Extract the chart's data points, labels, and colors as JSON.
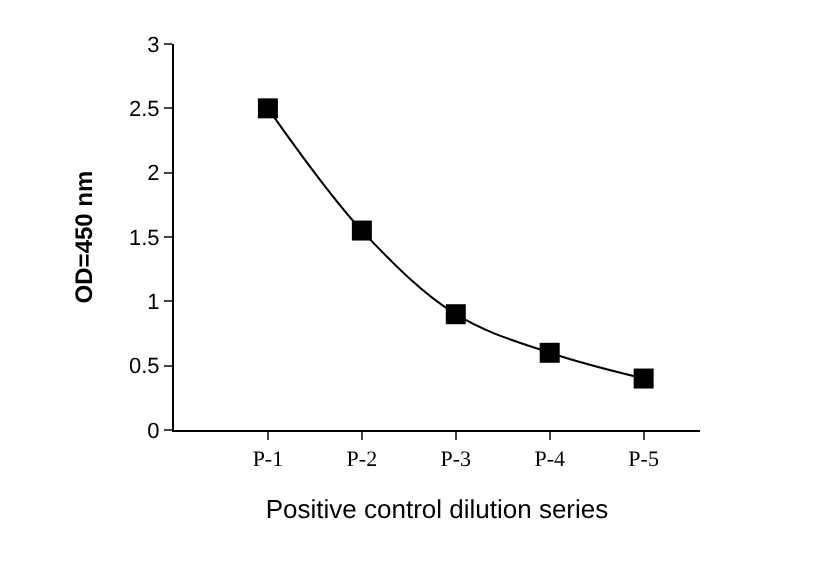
{
  "chart_data": {
    "type": "line",
    "xlabel": "Positive control dilution series",
    "ylabel": "OD=450 nm",
    "categories": [
      "P-1",
      "P-2",
      "P-3",
      "P-4",
      "P-5"
    ],
    "series": [
      {
        "color": "#000000",
        "values": [
          2.5,
          1.55,
          0.9,
          0.6,
          0.4
        ]
      }
    ],
    "ylim": [
      0,
      3
    ],
    "yticks": [
      0,
      0.5,
      1,
      1.5,
      2,
      2.5,
      3
    ],
    "marker": "square",
    "line_style": "solid"
  }
}
